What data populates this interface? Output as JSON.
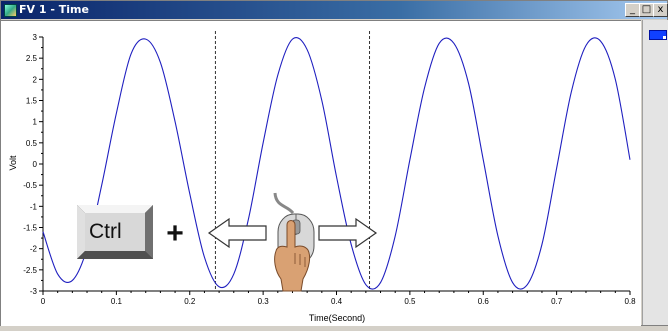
{
  "window": {
    "title": "FV 1 - Time",
    "controls": {
      "minimize": "_",
      "maximize": "□",
      "close": "x"
    }
  },
  "overlay": {
    "key_label": "Ctrl",
    "plus": "+"
  },
  "chart_data": {
    "type": "line",
    "xlabel": "Time(Second)",
    "ylabel": "Volt",
    "xlim": [
      0,
      0.8
    ],
    "ylim": [
      -3,
      3
    ],
    "x_ticks": [
      "0",
      "0.1",
      "0.2",
      "0.3",
      "0.4",
      "0.5",
      "0.6",
      "0.7",
      "0.8"
    ],
    "y_ticks": [
      "3",
      "2.5",
      "2",
      "1.5",
      "1",
      "0.5",
      "0",
      "-0.5",
      "-1",
      "-1.5",
      "-2",
      "-2.5",
      "-3"
    ],
    "series": [
      {
        "color": "#2020c0",
        "x": [
          0,
          0.02,
          0.04,
          0.06,
          0.08,
          0.1,
          0.12,
          0.14,
          0.16,
          0.18,
          0.2,
          0.22,
          0.24,
          0.26,
          0.28,
          0.3,
          0.32,
          0.34,
          0.36,
          0.38,
          0.4,
          0.42,
          0.44,
          0.46,
          0.48,
          0.5,
          0.52,
          0.54,
          0.56,
          0.58,
          0.6,
          0.62,
          0.64,
          0.66,
          0.68,
          0.7,
          0.72,
          0.74,
          0.76,
          0.78,
          0.8
        ],
        "y": [
          -1.6,
          -2.6,
          -2.75,
          -2.0,
          -0.5,
          1.2,
          2.6,
          2.95,
          2.4,
          1.0,
          -0.7,
          -2.2,
          -2.9,
          -2.6,
          -1.3,
          0.5,
          2.1,
          2.95,
          2.7,
          1.5,
          -0.3,
          -1.9,
          -2.85,
          -2.8,
          -1.7,
          0.1,
          1.8,
          2.85,
          2.85,
          1.9,
          0.1,
          -1.7,
          -2.8,
          -2.85,
          -1.9,
          -0.1,
          1.7,
          2.8,
          2.9,
          2.0,
          0.1
        ]
      }
    ],
    "cursors_x": [
      0.235,
      0.445
    ],
    "grid": false
  }
}
